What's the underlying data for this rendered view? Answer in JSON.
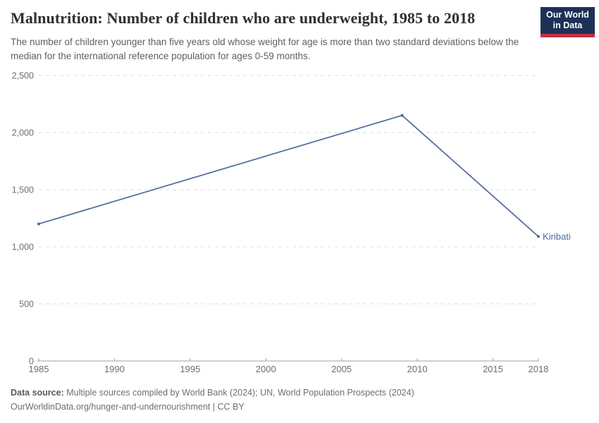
{
  "header": {
    "title": "Malnutrition: Number of children who are underweight, 1985 to 2018",
    "subtitle": "The number of children younger than five years old whose weight for age is more than two standard deviations below the median for the international reference population for ages 0-59 months.",
    "logo": {
      "line1": "Our World",
      "line2": "in Data"
    }
  },
  "chart_data": {
    "type": "line",
    "title": "Malnutrition: Number of children who are underweight, 1985 to 2018",
    "xlabel": "",
    "ylabel": "",
    "xlim": [
      1985,
      2018
    ],
    "ylim": [
      0,
      2500
    ],
    "grid": true,
    "legend": "end-of-line-label",
    "x_ticks": [
      1985,
      1990,
      1995,
      2000,
      2005,
      2010,
      2015,
      2018
    ],
    "y_ticks": [
      0,
      500,
      1000,
      1500,
      2000,
      2500
    ],
    "y_tick_labels": [
      "0",
      "500",
      "1,000",
      "1,500",
      "2,000",
      "2,500"
    ],
    "series": [
      {
        "name": "Kiribati",
        "color": "#4C6A9C",
        "points": [
          {
            "year": 1985,
            "value": 1200
          },
          {
            "year": 2009,
            "value": 2150
          },
          {
            "year": 2018,
            "value": 1090
          }
        ]
      }
    ]
  },
  "footer": {
    "source_label": "Data source:",
    "source_text": "Multiple sources compiled by World Bank (2024); UN, World Population Prospects (2024)",
    "attribution": "OurWorldinData.org/hunger-and-undernourishment | CC BY"
  },
  "colors": {
    "accent_line": "#4C6A9C",
    "grid": "#dcdcdc",
    "axis": "#a1a1a1",
    "tick_text": "#6e6e6e",
    "logo_navy": "#1d3156",
    "logo_red": "#c5303c"
  }
}
